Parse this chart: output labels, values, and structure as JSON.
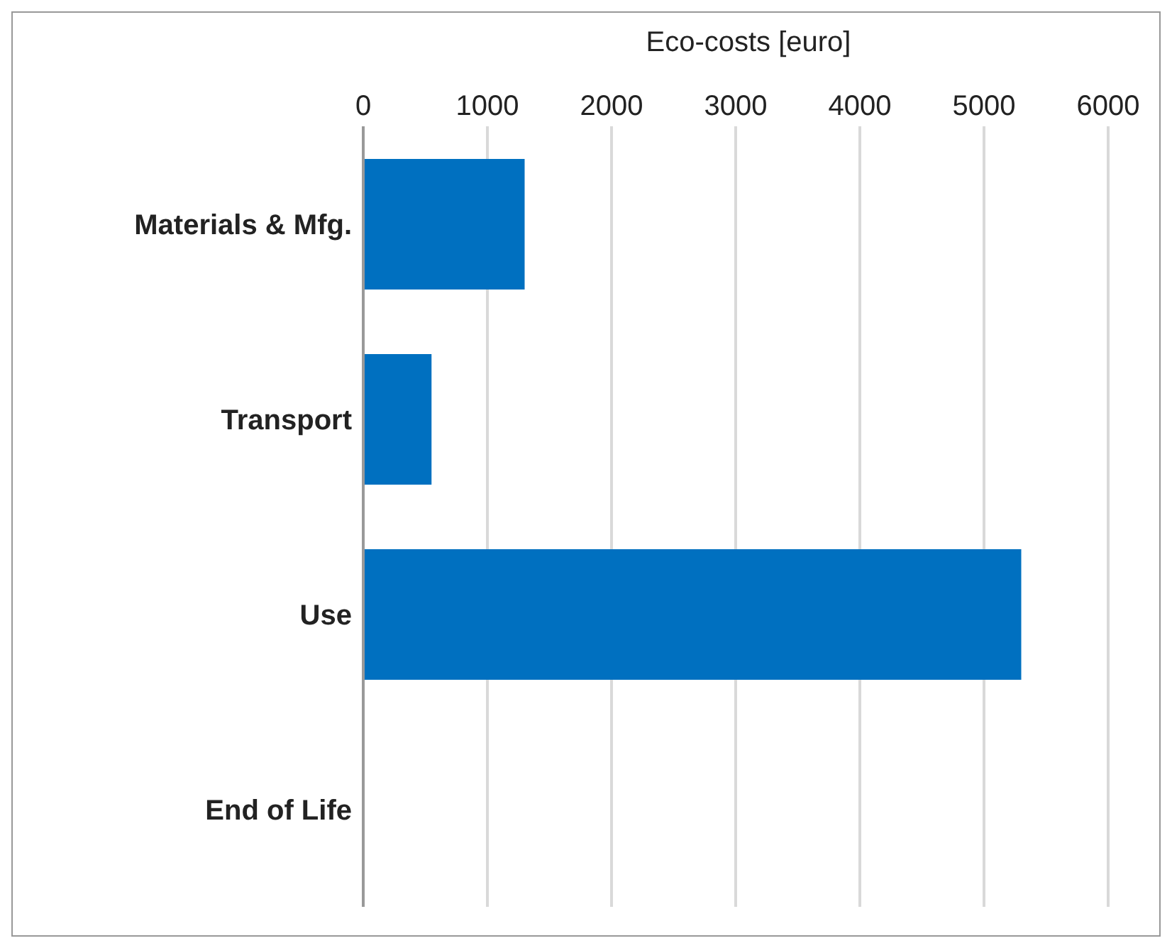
{
  "chart_data": {
    "type": "bar",
    "orientation": "horizontal",
    "xlabel": "Eco-costs [euro]",
    "categories": [
      "Materials & Mfg.",
      "Transport",
      "Use",
      "End of Life"
    ],
    "values": [
      1300,
      550,
      5300,
      0
    ],
    "color": "#0070c0",
    "xlim": [
      0,
      6000
    ],
    "xticks": [
      0,
      1000,
      2000,
      3000,
      4000,
      5000,
      6000
    ],
    "grid": "x"
  }
}
